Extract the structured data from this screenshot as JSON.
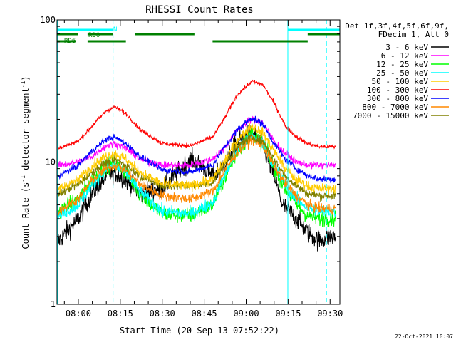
{
  "chart_data": {
    "type": "line",
    "title": "RHESSI Count Rates",
    "xlabel": "Start Time (20-Sep-13 07:52:22)",
    "ylabel_parts": {
      "pre": "Count Rate (s",
      "sup": "-1",
      "post": " detector segment",
      "sup2": "-1",
      "end": ")"
    },
    "y_scale": "log",
    "ylim": [
      1,
      100
    ],
    "y_ticks": [
      {
        "v": 1,
        "label": "1"
      },
      {
        "v": 10,
        "label": "10"
      },
      {
        "v": 100,
        "label": "100"
      }
    ],
    "xlim_minutes": [
      -7.63,
      93.5
    ],
    "x_ticks": [
      {
        "m": 0,
        "label": "08:00"
      },
      {
        "m": 15,
        "label": "08:15"
      },
      {
        "m": 30,
        "label": "08:30"
      },
      {
        "m": 45,
        "label": "08:45"
      },
      {
        "m": 60,
        "label": "09:00"
      },
      {
        "m": 75,
        "label": "09:15"
      },
      {
        "m": 90,
        "label": "09:30"
      }
    ],
    "legend_header": [
      "Det 1f,3f,4f,5f,6f,9f,",
      "FDecim 1, Att 0"
    ],
    "series": [
      {
        "name": "3 - 6 keV",
        "color": "#000000",
        "profile": [
          [
            -7,
            2.8
          ],
          [
            0,
            4.0
          ],
          [
            5,
            6.0
          ],
          [
            10,
            8.0
          ],
          [
            13,
            8.5
          ],
          [
            17,
            7.5
          ],
          [
            22,
            6.0
          ],
          [
            30,
            6.5
          ],
          [
            40,
            10.5
          ],
          [
            44,
            9.5
          ],
          [
            48,
            8.0
          ],
          [
            52,
            9.5
          ],
          [
            57,
            14.0
          ],
          [
            62,
            16.0
          ],
          [
            66,
            13.0
          ],
          [
            70,
            8.0
          ],
          [
            73,
            5.0
          ],
          [
            78,
            4.0
          ],
          [
            82,
            3.2
          ],
          [
            86,
            2.8
          ],
          [
            88,
            2.9
          ],
          [
            92,
            3.0
          ]
        ]
      },
      {
        "name": "6 - 12 keV",
        "color": "#ff00ff",
        "profile": [
          [
            -7,
            9.5
          ],
          [
            0,
            10.0
          ],
          [
            5,
            11.0
          ],
          [
            10,
            13.0
          ],
          [
            13,
            13.5
          ],
          [
            17,
            12.5
          ],
          [
            22,
            10.5
          ],
          [
            30,
            9.5
          ],
          [
            40,
            9.5
          ],
          [
            48,
            10.5
          ],
          [
            52,
            12.5
          ],
          [
            57,
            17.0
          ],
          [
            62,
            20.0
          ],
          [
            66,
            19.0
          ],
          [
            70,
            14.0
          ],
          [
            74,
            11.5
          ],
          [
            78,
            10.0
          ],
          [
            82,
            9.5
          ],
          [
            86,
            9.5
          ],
          [
            92,
            9.5
          ]
        ]
      },
      {
        "name": "12 - 25 keV",
        "color": "#00ff00",
        "profile": [
          [
            -7,
            4.5
          ],
          [
            0,
            5.5
          ],
          [
            5,
            7.5
          ],
          [
            10,
            9.5
          ],
          [
            13,
            9.8
          ],
          [
            17,
            8.5
          ],
          [
            22,
            6.0
          ],
          [
            30,
            4.3
          ],
          [
            40,
            4.2
          ],
          [
            48,
            5.0
          ],
          [
            52,
            7.5
          ],
          [
            57,
            12.0
          ],
          [
            62,
            16.0
          ],
          [
            66,
            13.5
          ],
          [
            70,
            9.0
          ],
          [
            74,
            6.5
          ],
          [
            78,
            5.0
          ],
          [
            82,
            4.2
          ],
          [
            86,
            4.0
          ],
          [
            92,
            4.0
          ]
        ]
      },
      {
        "name": "25 - 50 keV",
        "color": "#00ffff",
        "profile": [
          [
            -7,
            4.2
          ],
          [
            0,
            5.0
          ],
          [
            5,
            7.0
          ],
          [
            10,
            9.0
          ],
          [
            13,
            9.5
          ],
          [
            17,
            8.5
          ],
          [
            22,
            6.2
          ],
          [
            30,
            4.5
          ],
          [
            40,
            4.3
          ],
          [
            48,
            5.2
          ],
          [
            52,
            7.8
          ],
          [
            57,
            12.5
          ],
          [
            62,
            15.5
          ],
          [
            66,
            13.5
          ],
          [
            70,
            9.5
          ],
          [
            74,
            7.0
          ],
          [
            78,
            5.5
          ],
          [
            82,
            4.8
          ],
          [
            86,
            4.5
          ],
          [
            92,
            4.5
          ]
        ]
      },
      {
        "name": "50 - 100 keV",
        "color": "#ffcc00",
        "profile": [
          [
            -7,
            6.5
          ],
          [
            0,
            7.5
          ],
          [
            5,
            9.5
          ],
          [
            10,
            11.0
          ],
          [
            13,
            11.5
          ],
          [
            17,
            10.5
          ],
          [
            22,
            8.5
          ],
          [
            30,
            7.0
          ],
          [
            40,
            6.8
          ],
          [
            48,
            7.5
          ],
          [
            52,
            10.0
          ],
          [
            57,
            14.5
          ],
          [
            62,
            18.0
          ],
          [
            66,
            16.0
          ],
          [
            70,
            12.0
          ],
          [
            74,
            9.0
          ],
          [
            78,
            7.5
          ],
          [
            82,
            6.8
          ],
          [
            86,
            6.5
          ],
          [
            92,
            6.5
          ]
        ]
      },
      {
        "name": "100 - 300 keV",
        "color": "#ff0000",
        "profile": [
          [
            -7,
            12.5
          ],
          [
            0,
            14.0
          ],
          [
            5,
            18.0
          ],
          [
            10,
            23.0
          ],
          [
            13,
            24.5
          ],
          [
            17,
            22.0
          ],
          [
            22,
            17.0
          ],
          [
            30,
            13.5
          ],
          [
            40,
            13.0
          ],
          [
            48,
            15.0
          ],
          [
            52,
            20.0
          ],
          [
            57,
            30.0
          ],
          [
            62,
            37.0
          ],
          [
            66,
            35.0
          ],
          [
            70,
            26.0
          ],
          [
            74,
            18.0
          ],
          [
            78,
            15.0
          ],
          [
            82,
            13.5
          ],
          [
            86,
            12.8
          ],
          [
            92,
            12.8
          ]
        ]
      },
      {
        "name": "300 - 800 keV",
        "color": "#0000ff",
        "profile": [
          [
            -7,
            8.0
          ],
          [
            0,
            9.5
          ],
          [
            5,
            12.0
          ],
          [
            10,
            14.5
          ],
          [
            13,
            15.0
          ],
          [
            17,
            13.5
          ],
          [
            22,
            11.0
          ],
          [
            30,
            8.8
          ],
          [
            40,
            8.5
          ],
          [
            48,
            9.5
          ],
          [
            52,
            12.5
          ],
          [
            57,
            17.0
          ],
          [
            62,
            20.5
          ],
          [
            66,
            18.5
          ],
          [
            70,
            13.5
          ],
          [
            74,
            10.5
          ],
          [
            78,
            9.0
          ],
          [
            82,
            8.0
          ],
          [
            86,
            7.6
          ],
          [
            92,
            7.6
          ]
        ]
      },
      {
        "name": "800 - 7000 keV",
        "color": "#ff8800",
        "profile": [
          [
            -7,
            4.5
          ],
          [
            0,
            5.5
          ],
          [
            5,
            7.5
          ],
          [
            10,
            9.0
          ],
          [
            13,
            9.5
          ],
          [
            17,
            8.8
          ],
          [
            22,
            7.0
          ],
          [
            30,
            5.8
          ],
          [
            40,
            5.5
          ],
          [
            48,
            6.2
          ],
          [
            52,
            8.5
          ],
          [
            57,
            12.0
          ],
          [
            62,
            14.5
          ],
          [
            66,
            13.0
          ],
          [
            70,
            9.5
          ],
          [
            74,
            7.0
          ],
          [
            78,
            5.8
          ],
          [
            82,
            5.0
          ],
          [
            86,
            4.7
          ],
          [
            92,
            4.7
          ]
        ]
      },
      {
        "name": "7000 - 15000 keV",
        "color": "#808000",
        "profile": [
          [
            -7,
            6.0
          ],
          [
            0,
            7.0
          ],
          [
            5,
            8.5
          ],
          [
            10,
            10.0
          ],
          [
            13,
            10.5
          ],
          [
            17,
            9.5
          ],
          [
            22,
            8.0
          ],
          [
            30,
            6.8
          ],
          [
            40,
            6.8
          ],
          [
            48,
            7.2
          ],
          [
            52,
            9.5
          ],
          [
            57,
            13.0
          ],
          [
            62,
            15.0
          ],
          [
            66,
            14.0
          ],
          [
            70,
            10.5
          ],
          [
            74,
            8.0
          ],
          [
            78,
            6.8
          ],
          [
            82,
            6.0
          ],
          [
            86,
            5.8
          ],
          [
            92,
            5.8
          ]
        ]
      }
    ],
    "flags": [
      {
        "label": "N",
        "color": "#00ffff",
        "segments": [
          [
            -7.6,
            12.4
          ],
          [
            74.9,
            93.5
          ]
        ]
      },
      {
        "label": "RD0",
        "color": "#008000",
        "segments": [
          [
            -7.6,
            0
          ],
          [
            3.3,
            12.4
          ],
          [
            20.3,
            41.5
          ],
          [
            82,
            93.5
          ]
        ]
      },
      {
        "label": "RD6",
        "color": "#008000",
        "segments": [
          [
            -7.6,
            -1.0
          ],
          [
            3.3,
            17.0
          ],
          [
            48.0,
            82.0
          ]
        ]
      }
    ],
    "vlines_minutes": [
      12.4,
      88.7
    ],
    "vlines_solid_minutes": [
      -7.5,
      74.9
    ]
  },
  "footer_date": "22-Oct-2021 10:07"
}
